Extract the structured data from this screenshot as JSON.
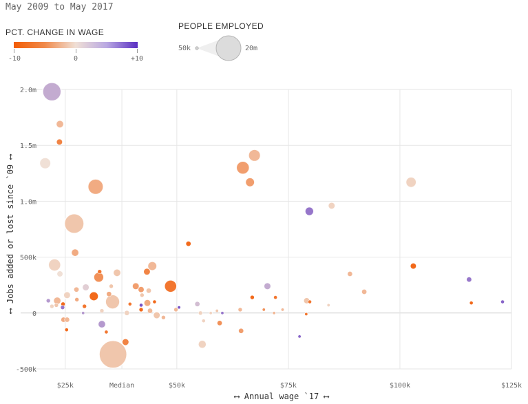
{
  "header": {
    "date_range": "May 2009 to May 2017"
  },
  "legend": {
    "wage_title": "PCT. CHANGE IN WAGE",
    "wage_min": "-10",
    "wage_mid": "0",
    "wage_max": "+10",
    "size_title": "PEOPLE EMPLOYED",
    "size_min": "50k",
    "size_max": "20m",
    "colors": {
      "neg": "#f25c05",
      "neutral": "#f0e0d6",
      "pos": "#5a2fc2"
    }
  },
  "chart_data": {
    "type": "scatter",
    "title": "",
    "xlabel": "⟷ Annual wage `17 ⟷",
    "ylabel": "⟷ Jobs added or lost since `09 ⟷",
    "xlim": [
      15000,
      125000
    ],
    "ylim": [
      -500000,
      2000000
    ],
    "x_ticks": [
      {
        "value": 25000,
        "label": "$25k"
      },
      {
        "value": 37690,
        "label": "Median"
      },
      {
        "value": 50000,
        "label": "$50k"
      },
      {
        "value": 75000,
        "label": "$75k"
      },
      {
        "value": 100000,
        "label": "$100k"
      },
      {
        "value": 125000,
        "label": "$125k"
      }
    ],
    "y_ticks": [
      {
        "value": 2000000,
        "label": "2.0m"
      },
      {
        "value": 1500000,
        "label": "1.5m"
      },
      {
        "value": 1000000,
        "label": "1.0m"
      },
      {
        "value": 500000,
        "label": "500k"
      },
      {
        "value": 0,
        "label": "0"
      },
      {
        "value": -500000,
        "label": "-500k"
      }
    ],
    "points": [
      {
        "x": 22000,
        "y": 1980000,
        "wage": 3,
        "emp": 4000000
      },
      {
        "x": 23800,
        "y": 1690000,
        "wage": -3,
        "emp": 700000
      },
      {
        "x": 23700,
        "y": 1530000,
        "wage": -7,
        "emp": 400000
      },
      {
        "x": 20500,
        "y": 1340000,
        "wage": 0,
        "emp": 1500000
      },
      {
        "x": 31800,
        "y": 1130000,
        "wage": -4,
        "emp": 2800000
      },
      {
        "x": 27000,
        "y": 800000,
        "wage": -2,
        "emp": 4500000
      },
      {
        "x": 27200,
        "y": 540000,
        "wage": -4,
        "emp": 700000
      },
      {
        "x": 22600,
        "y": 430000,
        "wage": -1,
        "emp": 1800000
      },
      {
        "x": 23800,
        "y": 350000,
        "wage": 0,
        "emp": 400000
      },
      {
        "x": 32700,
        "y": 370000,
        "wage": -8,
        "emp": 200000
      },
      {
        "x": 32500,
        "y": 320000,
        "wage": -6,
        "emp": 1200000
      },
      {
        "x": 36600,
        "y": 360000,
        "wage": -2,
        "emp": 700000
      },
      {
        "x": 35300,
        "y": 240000,
        "wage": -2,
        "emp": 200000
      },
      {
        "x": 29600,
        "y": 230000,
        "wage": 1,
        "emp": 600000
      },
      {
        "x": 27500,
        "y": 210000,
        "wage": -3,
        "emp": 300000
      },
      {
        "x": 25400,
        "y": 160000,
        "wage": -1,
        "emp": 600000
      },
      {
        "x": 31400,
        "y": 150000,
        "wage": -9,
        "emp": 1000000
      },
      {
        "x": 35600,
        "y": 100000,
        "wage": -2,
        "emp": 2400000
      },
      {
        "x": 34800,
        "y": 170000,
        "wage": -4,
        "emp": 300000
      },
      {
        "x": 23200,
        "y": 110000,
        "wage": -3,
        "emp": 700000
      },
      {
        "x": 21200,
        "y": 110000,
        "wage": 4,
        "emp": 200000
      },
      {
        "x": 24500,
        "y": 80000,
        "wage": -9,
        "emp": 200000
      },
      {
        "x": 24400,
        "y": 50000,
        "wage": 6,
        "emp": 200000
      },
      {
        "x": 22000,
        "y": 60000,
        "wage": -1,
        "emp": 200000
      },
      {
        "x": 23000,
        "y": 70000,
        "wage": -2,
        "emp": 200000
      },
      {
        "x": 29300,
        "y": 60000,
        "wage": -8,
        "emp": 200000
      },
      {
        "x": 29000,
        "y": 0,
        "wage": 4,
        "emp": 100000
      },
      {
        "x": 27600,
        "y": 120000,
        "wage": -4,
        "emp": 200000
      },
      {
        "x": 24600,
        "y": -60000,
        "wage": -4,
        "emp": 300000
      },
      {
        "x": 25400,
        "y": -60000,
        "wage": -3,
        "emp": 300000
      },
      {
        "x": 25300,
        "y": -150000,
        "wage": -9,
        "emp": 150000
      },
      {
        "x": 33200,
        "y": -100000,
        "wage": 4,
        "emp": 700000
      },
      {
        "x": 34200,
        "y": -170000,
        "wage": -8,
        "emp": 150000
      },
      {
        "x": 33200,
        "y": 20000,
        "wage": -1,
        "emp": 200000
      },
      {
        "x": 35700,
        "y": -370000,
        "wage": -2,
        "emp": 9000000
      },
      {
        "x": 38500,
        "y": -260000,
        "wage": -7,
        "emp": 600000
      },
      {
        "x": 38800,
        "y": 0,
        "wage": -1,
        "emp": 300000
      },
      {
        "x": 40800,
        "y": 240000,
        "wage": -5,
        "emp": 600000
      },
      {
        "x": 43300,
        "y": 370000,
        "wage": -7,
        "emp": 500000
      },
      {
        "x": 44500,
        "y": 420000,
        "wage": -3,
        "emp": 1000000
      },
      {
        "x": 48600,
        "y": 240000,
        "wage": -8,
        "emp": 1800000
      },
      {
        "x": 42000,
        "y": 210000,
        "wage": -5,
        "emp": 400000
      },
      {
        "x": 43700,
        "y": 200000,
        "wage": -2,
        "emp": 300000
      },
      {
        "x": 42200,
        "y": 160000,
        "wage": -2,
        "emp": 200000
      },
      {
        "x": 43400,
        "y": 90000,
        "wage": -4,
        "emp": 600000
      },
      {
        "x": 42000,
        "y": 70000,
        "wage": 8,
        "emp": 150000
      },
      {
        "x": 45000,
        "y": 100000,
        "wage": -9,
        "emp": 150000
      },
      {
        "x": 44000,
        "y": 20000,
        "wage": -3,
        "emp": 300000
      },
      {
        "x": 42000,
        "y": 30000,
        "wage": -9,
        "emp": 200000
      },
      {
        "x": 39500,
        "y": 80000,
        "wage": -8,
        "emp": 150000
      },
      {
        "x": 45500,
        "y": -20000,
        "wage": -2,
        "emp": 600000
      },
      {
        "x": 47000,
        "y": -40000,
        "wage": -3,
        "emp": 200000
      },
      {
        "x": 50500,
        "y": 50000,
        "wage": 8,
        "emp": 100000
      },
      {
        "x": 49800,
        "y": 30000,
        "wage": -3,
        "emp": 200000
      },
      {
        "x": 52600,
        "y": 620000,
        "wage": -9,
        "emp": 300000
      },
      {
        "x": 54600,
        "y": 80000,
        "wage": 2,
        "emp": 300000
      },
      {
        "x": 55300,
        "y": 0,
        "wage": -1,
        "emp": 200000
      },
      {
        "x": 56000,
        "y": -70000,
        "wage": -1,
        "emp": 150000
      },
      {
        "x": 55700,
        "y": -280000,
        "wage": -1,
        "emp": 800000
      },
      {
        "x": 59600,
        "y": -90000,
        "wage": -6,
        "emp": 300000
      },
      {
        "x": 57600,
        "y": 0,
        "wage": -1,
        "emp": 100000
      },
      {
        "x": 59000,
        "y": 20000,
        "wage": -2,
        "emp": 100000
      },
      {
        "x": 60200,
        "y": 0,
        "wage": 6,
        "emp": 100000
      },
      {
        "x": 64200,
        "y": 30000,
        "wage": -3,
        "emp": 200000
      },
      {
        "x": 64400,
        "y": -160000,
        "wage": -5,
        "emp": 300000
      },
      {
        "x": 64800,
        "y": 1300000,
        "wage": -5,
        "emp": 2000000
      },
      {
        "x": 67400,
        "y": 1410000,
        "wage": -3,
        "emp": 1700000
      },
      {
        "x": 66400,
        "y": 1170000,
        "wage": -5,
        "emp": 1000000
      },
      {
        "x": 66900,
        "y": 140000,
        "wage": -9,
        "emp": 200000
      },
      {
        "x": 70300,
        "y": 240000,
        "wage": 3,
        "emp": 600000
      },
      {
        "x": 69500,
        "y": 30000,
        "wage": -6,
        "emp": 100000
      },
      {
        "x": 72100,
        "y": 140000,
        "wage": -8,
        "emp": 150000
      },
      {
        "x": 73700,
        "y": 30000,
        "wage": -3,
        "emp": 100000
      },
      {
        "x": 71800,
        "y": 0,
        "wage": -3,
        "emp": 100000
      },
      {
        "x": 79100,
        "y": 110000,
        "wage": -2,
        "emp": 400000
      },
      {
        "x": 79800,
        "y": 100000,
        "wage": -8,
        "emp": 150000
      },
      {
        "x": 79700,
        "y": 910000,
        "wage": 6,
        "emp": 900000
      },
      {
        "x": 84700,
        "y": 960000,
        "wage": -1,
        "emp": 600000
      },
      {
        "x": 77500,
        "y": -210000,
        "wage": 7,
        "emp": 100000
      },
      {
        "x": 79000,
        "y": -10000,
        "wage": -8,
        "emp": 100000
      },
      {
        "x": 84000,
        "y": 70000,
        "wage": -1,
        "emp": 100000
      },
      {
        "x": 88800,
        "y": 350000,
        "wage": -3,
        "emp": 300000
      },
      {
        "x": 92000,
        "y": 190000,
        "wage": -3,
        "emp": 300000
      },
      {
        "x": 102500,
        "y": 1170000,
        "wage": -1,
        "emp": 1300000
      },
      {
        "x": 103000,
        "y": 420000,
        "wage": -9,
        "emp": 400000
      },
      {
        "x": 115500,
        "y": 300000,
        "wage": 6,
        "emp": 300000
      },
      {
        "x": 116000,
        "y": 90000,
        "wage": -9,
        "emp": 150000
      },
      {
        "x": 123000,
        "y": 100000,
        "wage": 7,
        "emp": 150000
      }
    ]
  }
}
